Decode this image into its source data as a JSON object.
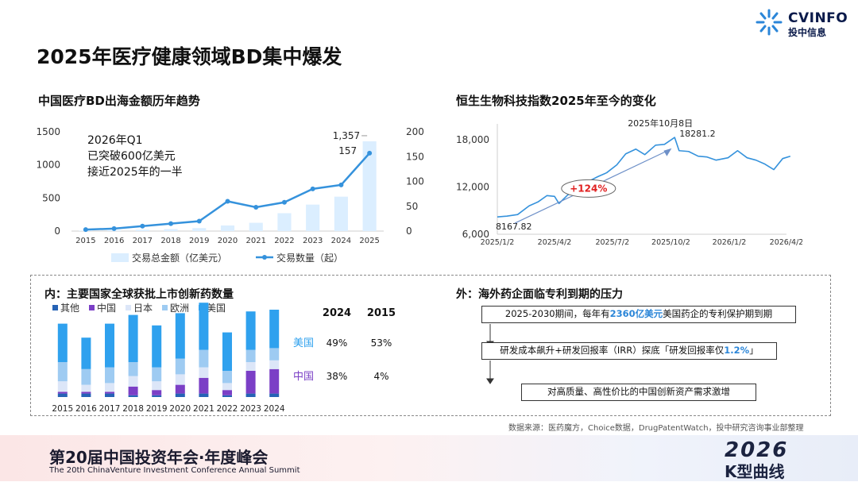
{
  "brand": {
    "name_en": "CVINFO",
    "name_cn": "投中信息"
  },
  "title": "2025年医疗健康领域BD集中爆发",
  "charts": [
    {
      "id": "bd",
      "title": "中国医疗BD出海金额历年趋势",
      "type": "bar+line",
      "categories": [
        "2015",
        "2016",
        "2017",
        "2018",
        "2019",
        "2020",
        "2021",
        "2022",
        "2023",
        "2024",
        "2025"
      ],
      "bar_series": {
        "name": "交易总金额（亿美元）",
        "values": [
          8,
          12,
          20,
          30,
          45,
          85,
          125,
          270,
          400,
          520,
          1357
        ]
      },
      "line_series": {
        "name": "交易数量（起）",
        "values": [
          3,
          5,
          10,
          15,
          20,
          60,
          48,
          58,
          85,
          93,
          157
        ]
      },
      "y_left": {
        "range": [
          0,
          1500
        ],
        "ticks": [
          "0",
          "500",
          "1000",
          "1500"
        ]
      },
      "y_right": {
        "range": [
          0,
          200
        ],
        "ticks": [
          "0",
          "50",
          "100",
          "150",
          "200"
        ]
      },
      "labels": {
        "bar_last": "1,357",
        "line_last": "157"
      },
      "annotation": [
        "2026年Q1",
        "已突破600亿美元",
        "接近2025年的一半"
      ],
      "colors": {
        "bar": "#dbeeff",
        "line": "#3592dc"
      }
    },
    {
      "id": "hsbio",
      "title": "恒生生物科技指数2025年至今的变化",
      "type": "line",
      "x_ticks": [
        "2025/1/2",
        "2025/4/2",
        "2025/7/2",
        "2025/10/2",
        "2026/1/2",
        "2026/4/2"
      ],
      "y_ticks": [
        "6,000",
        "12,000",
        "18,000"
      ],
      "y_range": [
        6000,
        20000
      ],
      "points": [
        [
          "2025/1/2",
          8200
        ],
        [
          "2025/1/17",
          8300
        ],
        [
          "2025/2/3",
          8500
        ],
        [
          "2025/2/21",
          9600
        ],
        [
          "2025/3/7",
          10100
        ],
        [
          "2025/3/21",
          10900
        ],
        [
          "2025/4/2",
          10800
        ],
        [
          "2025/4/9",
          9900
        ],
        [
          "2025/4/23",
          11000
        ],
        [
          "2025/5/9",
          11400
        ],
        [
          "2025/5/23",
          12600
        ],
        [
          "2025/6/9",
          13300
        ],
        [
          "2025/6/23",
          13800
        ],
        [
          "2025/7/9",
          14800
        ],
        [
          "2025/7/23",
          16200
        ],
        [
          "2025/8/8",
          16800
        ],
        [
          "2025/8/22",
          16100
        ],
        [
          "2025/9/8",
          17300
        ],
        [
          "2025/9/22",
          17400
        ],
        [
          "2025/10/8",
          18281.2
        ],
        [
          "2025/10/15",
          16600
        ],
        [
          "2025/10/30",
          16500
        ],
        [
          "2025/11/14",
          15900
        ],
        [
          "2025/11/28",
          15800
        ],
        [
          "2025/12/12",
          15400
        ],
        [
          "2025/12/31",
          15700
        ],
        [
          "2026/1/15",
          16600
        ],
        [
          "2026/1/30",
          15700
        ],
        [
          "2026/2/13",
          15400
        ],
        [
          "2026/2/27",
          14900
        ],
        [
          "2026/3/13",
          14200
        ],
        [
          "2026/3/27",
          15600
        ],
        [
          "2026/4/8",
          15900
        ]
      ],
      "labels": {
        "start": "8167.82",
        "peak_date": "2025年10月8日",
        "peak_value": "18281.2",
        "change": "+124%"
      },
      "colors": {
        "line": "#3592dc",
        "change": "#e02020"
      }
    },
    {
      "id": "drugs",
      "title": "内：主要国家全球获批上市创新药数量",
      "type": "stacked-bar",
      "categories": [
        "2015",
        "2016",
        "2017",
        "2018",
        "2019",
        "2020",
        "2021",
        "2022",
        "2023",
        "2024"
      ],
      "series": [
        {
          "name": "其他",
          "color": "#2663b5",
          "values": [
            2,
            2,
            2,
            1,
            1,
            2,
            2,
            1,
            2,
            2
          ]
        },
        {
          "name": "中国",
          "color": "#7b3fc6",
          "values": [
            1,
            1,
            1,
            5,
            3,
            5,
            9,
            3,
            13,
            14
          ]
        },
        {
          "name": "日本",
          "color": "#dce6f8",
          "values": [
            6,
            4,
            5,
            6,
            5,
            6,
            6,
            4,
            5,
            5
          ]
        },
        {
          "name": "欧洲",
          "color": "#9ecbf2",
          "values": [
            11,
            9,
            9,
            8,
            8,
            9,
            10,
            7,
            7,
            7
          ]
        },
        {
          "name": "美国",
          "color": "#2fa1ee",
          "values": [
            22,
            18,
            25,
            27,
            24,
            26,
            27,
            22,
            22,
            22
          ]
        }
      ],
      "table": {
        "headers": [
          "",
          "2024",
          "2015"
        ],
        "rows": [
          {
            "label": "美国",
            "v2024": "49%",
            "v2015": "53%",
            "color": "#2fa1ee"
          },
          {
            "label": "中国",
            "v2024": "38%",
            "v2015": "4%",
            "color": "#7b3fc6"
          }
        ]
      }
    }
  ],
  "pressure": {
    "title": "外：海外药企面临专利到期的压力",
    "steps": [
      {
        "pre": "2025-2030期间，每年有",
        "hl": "2360亿美元",
        "post": "美国药企的专利保护期到期"
      },
      {
        "pre": "研发成本飙升+研发回报率（IRR）探底「研发回报率仅",
        "hl": "1.2%",
        "post": "」"
      },
      {
        "pre": "对高质量、高性价比的中国创新资产需求激增",
        "hl": "",
        "post": ""
      }
    ]
  },
  "source": "数据来源：医药魔方，Choice数据，DrugPatentWatch，投中研究咨询事业部整理",
  "footer": {
    "cn": "第20届中国投资年会·年度峰会",
    "en": "The 20th ChinaVenture Investment Conference Annual Summit",
    "logo_year": "2026",
    "logo_slogan": "K型曲线"
  }
}
